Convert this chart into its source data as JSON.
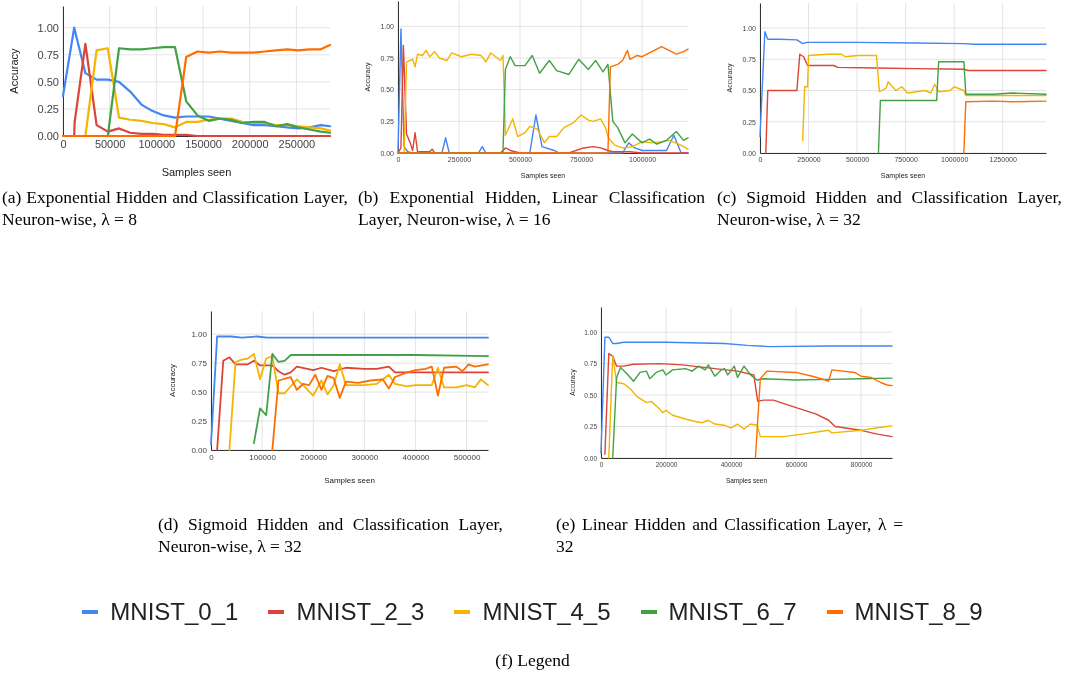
{
  "chart_data": [
    {
      "type": "line",
      "xlabel": "Samples seen",
      "ylabel": "Accuracy",
      "xlim": [
        0,
        286000
      ],
      "xticks": [
        0,
        50000,
        100000,
        150000,
        200000,
        250000
      ],
      "ylim": [
        0,
        1.2
      ],
      "yticks": [
        {
          "value": 0,
          "label": "0.00"
        },
        {
          "value": 0.25,
          "label": "0.25"
        },
        {
          "value": 0.5,
          "label": "0.50"
        },
        {
          "value": 0.75,
          "label": "0.75"
        },
        {
          "value": 1,
          "label": "1.00"
        }
      ],
      "grid": true,
      "legend": false,
      "line_style": "solid",
      "marker": "none",
      "annotations": [
        "(a) Exponential Hidden and Classification Layer, Neuron-wise, λ = 8"
      ],
      "series": [
        {
          "color": "#4285f4",
          "x": [
            0,
            12000,
            24000,
            36000,
            48000,
            60000,
            72000,
            84000,
            96000,
            108000,
            120000,
            132000,
            144000,
            156000,
            168000,
            180000,
            192000,
            204000,
            216000,
            228000,
            240000,
            252000,
            264000,
            276000,
            286000
          ],
          "values": [
            0.37,
            1.0,
            0.58,
            0.52,
            0.52,
            0.5,
            0.41,
            0.29,
            0.23,
            0.19,
            0.17,
            0.18,
            0.18,
            0.18,
            0.16,
            0.14,
            0.12,
            0.1,
            0.1,
            0.09,
            0.08,
            0.07,
            0.08,
            0.1,
            0.09
          ]
        },
        {
          "color": "#db4437",
          "x": [
            0,
            12000,
            12500,
            24000,
            36000,
            48000,
            60000,
            72000,
            84000,
            96000,
            108000,
            120000,
            132000,
            144000,
            286000
          ],
          "values": [
            0,
            0,
            0.13,
            0.85,
            0.1,
            0.04,
            0.07,
            0.03,
            0.02,
            0.02,
            0.01,
            0.01,
            0.01,
            0,
            0
          ]
        },
        {
          "color": "#f4b400",
          "x": [
            0,
            24000,
            36000,
            48000,
            60000,
            72000,
            84000,
            96000,
            108000,
            120000,
            132000,
            144000,
            156000,
            168000,
            180000,
            192000,
            204000,
            216000,
            228000,
            240000,
            252000,
            264000,
            276000,
            286000
          ],
          "values": [
            0,
            0,
            0.79,
            0.81,
            0.17,
            0.15,
            0.14,
            0.12,
            0.11,
            0.08,
            0.13,
            0.13,
            0.15,
            0.16,
            0.16,
            0.13,
            0.12,
            0.12,
            0.1,
            0.1,
            0.09,
            0.08,
            0.07,
            0.05
          ]
        },
        {
          "color": "#43a047",
          "x": [
            0,
            48000,
            60000,
            72000,
            84000,
            96000,
            108000,
            120000,
            132000,
            144000,
            156000,
            168000,
            180000,
            192000,
            204000,
            216000,
            228000,
            240000,
            252000,
            264000,
            276000,
            286000
          ],
          "values": [
            0,
            0,
            0.81,
            0.8,
            0.8,
            0.81,
            0.82,
            0.82,
            0.32,
            0.19,
            0.14,
            0.16,
            0.15,
            0.12,
            0.13,
            0.13,
            0.09,
            0.11,
            0.08,
            0.06,
            0.04,
            0.03
          ]
        },
        {
          "color": "#ff6d01",
          "x": [
            0,
            120000,
            132000,
            144000,
            156000,
            168000,
            180000,
            192000,
            204000,
            216000,
            228000,
            240000,
            252000,
            264000,
            276000,
            286000
          ],
          "values": [
            0,
            0,
            0.73,
            0.78,
            0.77,
            0.78,
            0.77,
            0.77,
            0.77,
            0.78,
            0.79,
            0.8,
            0.79,
            0.8,
            0.8,
            0.84
          ]
        }
      ]
    },
    {
      "type": "line",
      "xlabel": "Samples seen",
      "ylabel": "Accuracy",
      "xlim": [
        0,
        1188000
      ],
      "xticks": [
        0,
        250000,
        500000,
        750000,
        1000000
      ],
      "ylim": [
        0,
        1.2
      ],
      "yticks": [
        {
          "value": 0,
          "label": "0.00"
        },
        {
          "value": 0.25,
          "label": "0.25"
        },
        {
          "value": 0.5,
          "label": "0.50"
        },
        {
          "value": 0.75,
          "label": "0.75"
        },
        {
          "value": 1,
          "label": "1.00"
        }
      ],
      "grid": true,
      "legend": false,
      "line_style": "solid",
      "marker": "none",
      "annotations": [
        "(b) Exponential Hidden, Linear Classification Layer, Neuron-wise, λ = 16"
      ],
      "series": [
        {
          "color": "#4285f4",
          "x": [
            0,
            12000,
            25000,
            40000,
            60000,
            180000,
            195000,
            210000,
            330000,
            345000,
            360000,
            540000,
            565000,
            590000,
            640000,
            660000,
            920000,
            945000,
            970000,
            1000000,
            1060000,
            1100000,
            1130000,
            1160000,
            1188000
          ],
          "values": [
            0,
            0.98,
            0.05,
            0.01,
            0,
            0,
            0.12,
            0,
            0,
            0.05,
            0,
            0,
            0.3,
            0.05,
            0.02,
            0,
            0,
            0.08,
            0.04,
            0.02,
            0.02,
            0.02,
            0.14,
            0,
            0
          ]
        },
        {
          "color": "#db4437",
          "x": [
            0,
            12000,
            22000,
            35000,
            50000,
            60000,
            70000,
            80000,
            130000,
            140000,
            150000,
            420000,
            440000,
            460000,
            500000,
            700000,
            760000,
            800000,
            830000,
            860000,
            880000,
            950000,
            1000000,
            1188000
          ],
          "values": [
            0,
            0.04,
            0.85,
            0.15,
            0.08,
            0.02,
            0.16,
            0.01,
            0.01,
            0.03,
            0,
            0,
            0.04,
            0.02,
            0,
            0,
            0.04,
            0.05,
            0.04,
            0.02,
            0.01,
            0.01,
            0,
            0
          ]
        },
        {
          "color": "#f4b400",
          "x": [
            0,
            25000,
            35000,
            60000,
            70000,
            80000,
            100000,
            115000,
            130000,
            150000,
            170000,
            200000,
            220000,
            260000,
            300000,
            340000,
            360000,
            380000,
            420000,
            430000,
            440000,
            470000,
            490000,
            520000,
            540000,
            570000,
            600000,
            620000,
            650000,
            680000,
            720000,
            750000,
            780000,
            800000,
            830000,
            850000,
            860000,
            870000,
            890000,
            920000,
            960000,
            1000000,
            1040000,
            1080000,
            1110000,
            1150000,
            1188000
          ],
          "values": [
            0,
            0,
            0.72,
            0.74,
            0.68,
            0.78,
            0.77,
            0.81,
            0.76,
            0.8,
            0.75,
            0.73,
            0.79,
            0.76,
            0.78,
            0.77,
            0.72,
            0.79,
            0.73,
            0.77,
            0.14,
            0.27,
            0.13,
            0.16,
            0.21,
            0.19,
            0.08,
            0.13,
            0.13,
            0.2,
            0.24,
            0.3,
            0.26,
            0.25,
            0.27,
            0.2,
            0.13,
            0.1,
            0.06,
            0.04,
            0.05,
            0.09,
            0.08,
            0.09,
            0.1,
            0.07,
            0.03
          ]
        },
        {
          "color": "#43a047",
          "x": [
            0,
            430000,
            440000,
            460000,
            480000,
            520000,
            550000,
            580000,
            620000,
            650000,
            700000,
            740000,
            780000,
            810000,
            840000,
            860000,
            880000,
            900000,
            930000,
            960000,
            1000000,
            1030000,
            1060000,
            1100000,
            1140000,
            1170000,
            1188000
          ],
          "values": [
            0,
            0,
            0.66,
            0.76,
            0.69,
            0.69,
            0.77,
            0.63,
            0.73,
            0.65,
            0.62,
            0.74,
            0.66,
            0.73,
            0.64,
            0.7,
            0.25,
            0.2,
            0.08,
            0.15,
            0.08,
            0.11,
            0.07,
            0.1,
            0.17,
            0.1,
            0.12
          ]
        },
        {
          "color": "#ff6d01",
          "x": [
            0,
            860000,
            870000,
            900000,
            920000,
            940000,
            950000,
            980000,
            1000000,
            1040000,
            1080000,
            1110000,
            1140000,
            1170000,
            1188000
          ],
          "values": [
            0,
            0,
            0.68,
            0.7,
            0.73,
            0.81,
            0.74,
            0.77,
            0.76,
            0.8,
            0.84,
            0.81,
            0.78,
            0.8,
            0.82
          ]
        }
      ]
    },
    {
      "type": "line",
      "xlabel": "Samples seen",
      "ylabel": "Accuracy",
      "xlim": [
        0,
        1473000
      ],
      "xticks": [
        0,
        250000,
        500000,
        750000,
        1000000,
        1250000
      ],
      "ylim": [
        0,
        1.2
      ],
      "yticks": [
        {
          "value": 0,
          "label": "0.00"
        },
        {
          "value": 0.25,
          "label": "0.25"
        },
        {
          "value": 0.5,
          "label": "0.50"
        },
        {
          "value": 0.75,
          "label": "0.75"
        },
        {
          "value": 1,
          "label": "1.00"
        }
      ],
      "grid": true,
      "legend": false,
      "line_style": "solid",
      "marker": "none",
      "annotations": [
        "(c) Sigmoid Hidden and Classification Layer, Neuron-wise, λ = 32"
      ],
      "series": [
        {
          "color": "#4285f4",
          "x": [
            0,
            25000,
            40000,
            100000,
            190000,
            220000,
            240000,
            500000,
            800000,
            1050000,
            1100000,
            1473000
          ],
          "values": [
            0.13,
            0.97,
            0.91,
            0.91,
            0.905,
            0.875,
            0.885,
            0.885,
            0.88,
            0.875,
            0.87,
            0.87
          ]
        },
        {
          "color": "#db4437",
          "x": [
            30000,
            40000,
            190000,
            205000,
            225000,
            245000,
            380000,
            400000,
            600000,
            800000,
            1050000,
            1070000,
            1300000,
            1473000
          ],
          "values": [
            0,
            0.5,
            0.5,
            0.79,
            0.77,
            0.7,
            0.7,
            0.685,
            0.68,
            0.675,
            0.67,
            0.66,
            0.66,
            0.66
          ]
        },
        {
          "color": "#f4b400",
          "x": [
            220000,
            230000,
            245000,
            250000,
            350000,
            420000,
            440000,
            500000,
            600000,
            615000,
            650000,
            660000,
            700000,
            730000,
            760000,
            850000,
            880000,
            900000,
            920000,
            980000,
            1000000,
            1050000,
            1060000,
            1473000
          ],
          "values": [
            0.1,
            0.53,
            0.53,
            0.78,
            0.79,
            0.79,
            0.77,
            0.78,
            0.78,
            0.49,
            0.52,
            0.57,
            0.5,
            0.53,
            0.48,
            0.5,
            0.48,
            0.55,
            0.49,
            0.5,
            0.53,
            0.5,
            0.46,
            0.46
          ]
        },
        {
          "color": "#43a047",
          "x": [
            610000,
            620000,
            700000,
            780000,
            910000,
            920000,
            1050000,
            1060000,
            1200000,
            1300000,
            1473000
          ],
          "values": [
            0,
            0.42,
            0.42,
            0.42,
            0.42,
            0.73,
            0.73,
            0.47,
            0.47,
            0.48,
            0.47
          ]
        },
        {
          "color": "#ff6d01",
          "x": [
            1050000,
            1060000,
            1200000,
            1300000,
            1473000
          ],
          "values": [
            0,
            0.41,
            0.415,
            0.41,
            0.415
          ]
        }
      ]
    },
    {
      "type": "line",
      "xlabel": "Samples seen",
      "ylabel": "Accuracy",
      "xlim": [
        0,
        542000
      ],
      "xticks": [
        0,
        100000,
        200000,
        300000,
        400000,
        500000
      ],
      "ylim": [
        0,
        1.2
      ],
      "yticks": [
        {
          "value": 0,
          "label": "0.00"
        },
        {
          "value": 0.25,
          "label": "0.25"
        },
        {
          "value": 0.5,
          "label": "0.50"
        },
        {
          "value": 0.75,
          "label": "0.75"
        },
        {
          "value": 1,
          "label": "1.00"
        }
      ],
      "grid": true,
      "legend": false,
      "line_style": "solid",
      "marker": "none",
      "annotations": [
        "(d) Sigmoid Hidden and Classification Layer, Neuron-wise, λ = 32"
      ],
      "series": [
        {
          "color": "#4285f4",
          "x": [
            0,
            12000,
            40000,
            60000,
            90000,
            110000,
            140000,
            542000
          ],
          "values": [
            0.05,
            0.98,
            0.98,
            0.97,
            0.98,
            0.97,
            0.97,
            0.97
          ]
        },
        {
          "color": "#db4437",
          "x": [
            12000,
            24000,
            36000,
            48000,
            72000,
            84000,
            96000,
            120000,
            132000,
            144000,
            156000,
            168000,
            200000,
            216000,
            240000,
            264000,
            300000,
            324000,
            348000,
            360000,
            400000,
            460000,
            500000,
            542000
          ],
          "values": [
            0,
            0.77,
            0.8,
            0.74,
            0.74,
            0.77,
            0.73,
            0.73,
            0.68,
            0.65,
            0.67,
            0.72,
            0.69,
            0.71,
            0.68,
            0.71,
            0.7,
            0.7,
            0.72,
            0.67,
            0.67,
            0.67,
            0.67,
            0.67
          ]
        },
        {
          "color": "#f4b400",
          "x": [
            36000,
            48000,
            60000,
            72000,
            84000,
            96000,
            108000,
            120000,
            132000,
            144000,
            168000,
            180000,
            200000,
            216000,
            228000,
            240000,
            252000,
            264000,
            300000,
            324000,
            348000,
            360000,
            384000,
            400000,
            432000,
            444000,
            456000,
            480000,
            500000,
            516000,
            528000,
            542000
          ],
          "values": [
            0,
            0.76,
            0.78,
            0.79,
            0.83,
            0.61,
            0.79,
            0.81,
            0.49,
            0.49,
            0.61,
            0.56,
            0.47,
            0.6,
            0.48,
            0.56,
            0.74,
            0.56,
            0.56,
            0.57,
            0.65,
            0.57,
            0.55,
            0.56,
            0.56,
            0.71,
            0.54,
            0.54,
            0.56,
            0.54,
            0.61,
            0.56
          ]
        },
        {
          "color": "#43a047",
          "x": [
            84000,
            96000,
            108000,
            120000,
            132000,
            144000,
            156000,
            300000,
            400000,
            542000
          ],
          "values": [
            0.06,
            0.36,
            0.3,
            0.83,
            0.76,
            0.77,
            0.82,
            0.82,
            0.82,
            0.81
          ]
        },
        {
          "color": "#ff6d01",
          "x": [
            120000,
            132000,
            156000,
            168000,
            180000,
            192000,
            204000,
            216000,
            228000,
            240000,
            252000,
            264000,
            288000,
            312000,
            336000,
            348000,
            360000,
            384000,
            400000,
            420000,
            432000,
            444000,
            456000,
            480000,
            492000,
            504000,
            516000,
            542000
          ],
          "values": [
            0,
            0.6,
            0.63,
            0.52,
            0.57,
            0.56,
            0.65,
            0.52,
            0.64,
            0.62,
            0.45,
            0.59,
            0.58,
            0.6,
            0.61,
            0.53,
            0.63,
            0.67,
            0.69,
            0.7,
            0.72,
            0.47,
            0.71,
            0.72,
            0.68,
            0.74,
            0.72,
            0.74
          ]
        }
      ]
    },
    {
      "type": "line",
      "xlabel": "Samples seen",
      "ylabel": "Accuracy",
      "xlim": [
        0,
        895000
      ],
      "xticks": [
        0,
        200000,
        400000,
        600000,
        800000
      ],
      "ylim": [
        0,
        1.2
      ],
      "yticks": [
        {
          "value": 0,
          "label": "0.00"
        },
        {
          "value": 0.25,
          "label": "0.25"
        },
        {
          "value": 0.5,
          "label": "0.50"
        },
        {
          "value": 0.75,
          "label": "0.75"
        },
        {
          "value": 1,
          "label": "1.00"
        }
      ],
      "grid": true,
      "legend": "bottom",
      "line_style": "solid",
      "marker": "none",
      "annotations": [
        "(e) Linear Hidden and Classification Layer, λ = 32",
        "(f) Legend"
      ],
      "series": [
        {
          "name": "MNIST_0_1",
          "color": "#4285f4",
          "x": [
            0,
            12000,
            24000,
            36000,
            48000,
            70000,
            200000,
            380000,
            450000,
            520000,
            700000,
            895000
          ],
          "values": [
            0.04,
            0.96,
            0.96,
            0.91,
            0.91,
            0.92,
            0.92,
            0.91,
            0.895,
            0.885,
            0.89,
            0.89
          ]
        },
        {
          "name": "MNIST_2_3",
          "color": "#db4437",
          "x": [
            12000,
            24000,
            36000,
            48000,
            70000,
            100000,
            180000,
            250000,
            350000,
            420000,
            470000,
            482000,
            500000,
            530000,
            600000,
            660000,
            700000,
            720000,
            800000,
            850000,
            895000
          ],
          "values": [
            0.03,
            0.83,
            0.81,
            0.73,
            0.73,
            0.745,
            0.75,
            0.74,
            0.71,
            0.69,
            0.66,
            0.45,
            0.46,
            0.46,
            0.4,
            0.35,
            0.3,
            0.25,
            0.22,
            0.19,
            0.17
          ]
        },
        {
          "name": "MNIST_4_5",
          "color": "#f4b400",
          "x": [
            24000,
            36000,
            48000,
            70000,
            90000,
            110000,
            140000,
            155000,
            180000,
            190000,
            200000,
            220000,
            260000,
            290000,
            310000,
            330000,
            350000,
            380000,
            400000,
            420000,
            440000,
            460000,
            480000,
            490000,
            560000,
            620000,
            700000,
            710000,
            800000,
            850000,
            895000
          ],
          "values": [
            0,
            0.81,
            0.6,
            0.59,
            0.55,
            0.49,
            0.44,
            0.45,
            0.39,
            0.36,
            0.38,
            0.34,
            0.31,
            0.29,
            0.28,
            0.3,
            0.27,
            0.26,
            0.24,
            0.27,
            0.23,
            0.27,
            0.26,
            0.17,
            0.17,
            0.19,
            0.22,
            0.2,
            0.22,
            0.24,
            0.255
          ]
        },
        {
          "name": "MNIST_6_7",
          "color": "#43a047",
          "x": [
            36000,
            48000,
            60000,
            80000,
            100000,
            120000,
            140000,
            150000,
            170000,
            190000,
            200000,
            220000,
            260000,
            280000,
            300000,
            320000,
            330000,
            350000,
            370000,
            380000,
            390000,
            410000,
            420000,
            440000,
            460000,
            480000,
            500000,
            600000,
            700000,
            800000,
            895000
          ],
          "values": [
            0,
            0.64,
            0.72,
            0.67,
            0.61,
            0.68,
            0.69,
            0.63,
            0.68,
            0.7,
            0.66,
            0.7,
            0.71,
            0.69,
            0.73,
            0.7,
            0.74,
            0.65,
            0.7,
            0.71,
            0.66,
            0.73,
            0.64,
            0.73,
            0.66,
            0.62,
            0.63,
            0.62,
            0.625,
            0.63,
            0.635
          ]
        },
        {
          "name": "MNIST_8_9",
          "color": "#ff6d01",
          "x": [
            475000,
            490000,
            510000,
            600000,
            650000,
            690000,
            700000,
            710000,
            780000,
            800000,
            830000,
            860000,
            880000,
            895000
          ],
          "values": [
            0,
            0.63,
            0.69,
            0.68,
            0.65,
            0.62,
            0.61,
            0.7,
            0.68,
            0.65,
            0.64,
            0.6,
            0.58,
            0.575
          ]
        }
      ]
    }
  ]
}
